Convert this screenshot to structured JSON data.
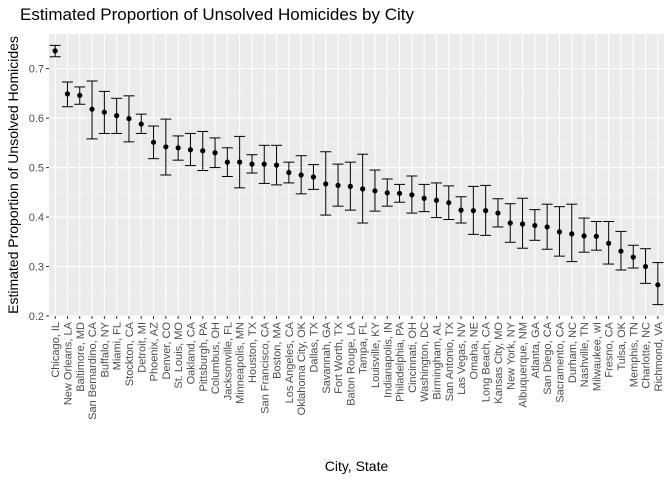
{
  "chart_data": {
    "type": "scatter",
    "title": "Estimated Proportion of Unsolved Homicides by City",
    "xlabel": "City, State",
    "ylabel": "Estimated Proportion of Unsolved Homicides",
    "ylim": [
      0.2,
      0.77
    ],
    "yticks": [
      "0.2",
      "0.3",
      "0.4",
      "0.5",
      "0.6",
      "0.7"
    ],
    "grid": true,
    "background": "#ebebeb",
    "point_color": "#000000",
    "points": [
      {
        "city": "Chicago, IL",
        "estimate": 0.736,
        "low": 0.724,
        "high": 0.747
      },
      {
        "city": "New Orleans, LA",
        "estimate": 0.649,
        "low": 0.623,
        "high": 0.673
      },
      {
        "city": "Baltimore, MD",
        "estimate": 0.646,
        "low": 0.628,
        "high": 0.663
      },
      {
        "city": "San Bernardino, CA",
        "estimate": 0.618,
        "low": 0.558,
        "high": 0.675
      },
      {
        "city": "Buffalo, NY",
        "estimate": 0.612,
        "low": 0.569,
        "high": 0.654
      },
      {
        "city": "Miami, FL",
        "estimate": 0.605,
        "low": 0.569,
        "high": 0.64
      },
      {
        "city": "Stockton, CA",
        "estimate": 0.599,
        "low": 0.552,
        "high": 0.645
      },
      {
        "city": "Detroit, MI",
        "estimate": 0.588,
        "low": 0.569,
        "high": 0.608
      },
      {
        "city": "Phoenix, AZ",
        "estimate": 0.551,
        "low": 0.518,
        "high": 0.584
      },
      {
        "city": "Denver, CO",
        "estimate": 0.542,
        "low": 0.485,
        "high": 0.598
      },
      {
        "city": "St. Louis, MO",
        "estimate": 0.54,
        "low": 0.515,
        "high": 0.564
      },
      {
        "city": "Oakland, CA",
        "estimate": 0.536,
        "low": 0.504,
        "high": 0.569
      },
      {
        "city": "Pittsburgh, PA",
        "estimate": 0.534,
        "low": 0.494,
        "high": 0.573
      },
      {
        "city": "Columbus, OH",
        "estimate": 0.53,
        "low": 0.5,
        "high": 0.56
      },
      {
        "city": "Jacksonville, FL",
        "estimate": 0.511,
        "low": 0.482,
        "high": 0.54
      },
      {
        "city": "Minneapolis, MN",
        "estimate": 0.511,
        "low": 0.459,
        "high": 0.563
      },
      {
        "city": "Houston, TX",
        "estimate": 0.507,
        "low": 0.489,
        "high": 0.526
      },
      {
        "city": "San Francisco, CA",
        "estimate": 0.507,
        "low": 0.468,
        "high": 0.545
      },
      {
        "city": "Boston, MA",
        "estimate": 0.505,
        "low": 0.465,
        "high": 0.545
      },
      {
        "city": "Los Angeles, CA",
        "estimate": 0.49,
        "low": 0.469,
        "high": 0.511
      },
      {
        "city": "Oklahoma City, OK",
        "estimate": 0.485,
        "low": 0.447,
        "high": 0.524
      },
      {
        "city": "Dallas, TX",
        "estimate": 0.481,
        "low": 0.456,
        "high": 0.506
      },
      {
        "city": "Savannah, GA",
        "estimate": 0.467,
        "low": 0.404,
        "high": 0.532
      },
      {
        "city": "Fort Worth, TX",
        "estimate": 0.464,
        "low": 0.422,
        "high": 0.507
      },
      {
        "city": "Baton Rouge, LA",
        "estimate": 0.462,
        "low": 0.414,
        "high": 0.511
      },
      {
        "city": "Tampa, FL",
        "estimate": 0.457,
        "low": 0.388,
        "high": 0.527
      },
      {
        "city": "Louisville, KY",
        "estimate": 0.453,
        "low": 0.412,
        "high": 0.495
      },
      {
        "city": "Indianapolis, IN",
        "estimate": 0.449,
        "low": 0.422,
        "high": 0.477
      },
      {
        "city": "Philadelphia, PA",
        "estimate": 0.448,
        "low": 0.43,
        "high": 0.466
      },
      {
        "city": "Cincinnati, OH",
        "estimate": 0.445,
        "low": 0.408,
        "high": 0.483
      },
      {
        "city": "Washington, DC",
        "estimate": 0.438,
        "low": 0.411,
        "high": 0.466
      },
      {
        "city": "Birmingham, AL",
        "estimate": 0.434,
        "low": 0.399,
        "high": 0.469
      },
      {
        "city": "San Antonio, TX",
        "estimate": 0.429,
        "low": 0.395,
        "high": 0.463
      },
      {
        "city": "Las Vegas, NV",
        "estimate": 0.414,
        "low": 0.388,
        "high": 0.441
      },
      {
        "city": "Omaha, NE",
        "estimate": 0.413,
        "low": 0.365,
        "high": 0.462
      },
      {
        "city": "Long Beach, CA",
        "estimate": 0.413,
        "low": 0.363,
        "high": 0.464
      },
      {
        "city": "Kansas City, MO",
        "estimate": 0.408,
        "low": 0.38,
        "high": 0.437
      },
      {
        "city": "New York, NY",
        "estimate": 0.388,
        "low": 0.349,
        "high": 0.427
      },
      {
        "city": "Albuquerque, NM",
        "estimate": 0.386,
        "low": 0.337,
        "high": 0.438
      },
      {
        "city": "Atlanta, GA",
        "estimate": 0.383,
        "low": 0.353,
        "high": 0.415
      },
      {
        "city": "San Diego, CA",
        "estimate": 0.38,
        "low": 0.335,
        "high": 0.426
      },
      {
        "city": "Sacramento, CA",
        "estimate": 0.37,
        "low": 0.321,
        "high": 0.421
      },
      {
        "city": "Durham, NC",
        "estimate": 0.366,
        "low": 0.31,
        "high": 0.426
      },
      {
        "city": "Nashville, TN",
        "estimate": 0.362,
        "low": 0.329,
        "high": 0.398
      },
      {
        "city": "Milwaukee, wI",
        "estimate": 0.361,
        "low": 0.333,
        "high": 0.391
      },
      {
        "city": "Fresno, CA",
        "estimate": 0.347,
        "low": 0.305,
        "high": 0.391
      },
      {
        "city": "Tulsa, OK",
        "estimate": 0.331,
        "low": 0.293,
        "high": 0.371
      },
      {
        "city": "Memphis, TN",
        "estimate": 0.319,
        "low": 0.297,
        "high": 0.343
      },
      {
        "city": "Charlotte, NC",
        "estimate": 0.3,
        "low": 0.266,
        "high": 0.336
      },
      {
        "city": "Richmond, VA",
        "estimate": 0.263,
        "low": 0.223,
        "high": 0.308
      }
    ]
  }
}
